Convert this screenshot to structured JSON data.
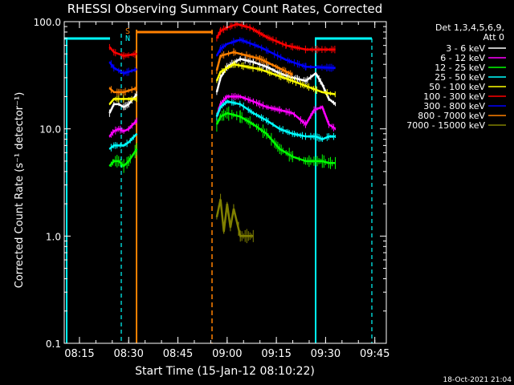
{
  "chart_data": {
    "type": "line",
    "title": "RHESSI Observing Summary Count Rates, Corrected",
    "xlabel": "Start Time (15-Jan-12 08:10:22)",
    "ylabel": "Corrected Count Rate (s⁻¹ detector⁻¹)",
    "y_scale": "log",
    "ylim": [
      0.1,
      100.0
    ],
    "xlim": [
      "08:10:22",
      "09:48:30"
    ],
    "x_ticks": [
      "08:15",
      "08:30",
      "08:45",
      "09:00",
      "09:15",
      "09:30",
      "09:45"
    ],
    "y_ticks": [
      "0.1",
      "1.0",
      "10.0",
      "100.0"
    ],
    "legend_header": [
      "Det 1,3,4,5,6,9,",
      "Att 0"
    ],
    "legend_position": "right",
    "flags": [
      "S",
      "N"
    ],
    "footer_date": "18-Oct-2021 21:04",
    "series": [
      {
        "name": "3 - 6 keV",
        "color": "#ffffff",
        "x": [
          "08:24:10",
          "08:25:30",
          "08:27:00",
          "08:28:30",
          "08:30:00",
          "08:32:30",
          "08:56:50",
          "08:58:00",
          "09:00:00",
          "09:04:00",
          "09:08:00",
          "09:12:00",
          "09:16:00",
          "09:20:00",
          "09:24:00",
          "09:27:00",
          "09:29:00",
          "09:31:00",
          "09:33:00"
        ],
        "y": [
          14,
          17,
          17,
          16,
          17,
          21,
          22,
          30,
          38,
          45,
          42,
          38,
          33,
          30,
          28,
          33,
          26,
          19,
          17
        ]
      },
      {
        "name": "6 - 12 keV",
        "color": "#ff00ff",
        "x": [
          "08:24:10",
          "08:25:30",
          "08:27:00",
          "08:28:30",
          "08:30:00",
          "08:32:30",
          "08:56:50",
          "08:58:00",
          "09:00:00",
          "09:04:00",
          "09:08:00",
          "09:12:00",
          "09:16:00",
          "09:20:00",
          "09:24:00",
          "09:26:30",
          "09:29:00",
          "09:31:00",
          "09:33:00"
        ],
        "y": [
          8.5,
          9.5,
          10,
          9.5,
          10,
          12,
          13,
          17,
          20,
          20,
          18,
          16,
          15,
          14,
          11,
          15,
          16,
          11,
          10
        ]
      },
      {
        "name": "12 - 25 keV",
        "color": "#00ff00",
        "x": [
          "08:24:10",
          "08:25:30",
          "08:27:00",
          "08:28:30",
          "08:30:00",
          "08:32:30",
          "08:56:50",
          "08:58:00",
          "09:00:00",
          "09:04:00",
          "09:08:00",
          "09:12:00",
          "09:16:00",
          "09:20:00",
          "09:24:00",
          "09:27:00",
          "09:29:00",
          "09:31:00",
          "09:33:00"
        ],
        "y": [
          4.5,
          5,
          5,
          4.5,
          5,
          6.5,
          11,
          13,
          14,
          13,
          11,
          9,
          6.5,
          5.5,
          5,
          5,
          5,
          4.8,
          4.8
        ]
      },
      {
        "name": "25 - 50 keV",
        "color": "#00ffff",
        "x": [
          "08:24:10",
          "08:25:30",
          "08:27:00",
          "08:28:30",
          "08:30:00",
          "08:32:30",
          "08:56:50",
          "08:58:00",
          "09:00:00",
          "09:04:00",
          "09:08:00",
          "09:12:00",
          "09:16:00",
          "09:20:00",
          "09:24:00",
          "09:27:00",
          "09:29:00",
          "09:31:00",
          "09:33:00"
        ],
        "y": [
          6.5,
          7,
          7,
          7,
          7.5,
          9,
          13,
          16,
          18,
          17,
          14,
          12,
          10,
          9,
          8.5,
          8.5,
          8,
          8.5,
          8.5
        ]
      },
      {
        "name": "50 - 100 keV",
        "color": "#ffff00",
        "x": [
          "08:24:10",
          "08:25:30",
          "08:28:30",
          "08:32:30",
          "08:56:50",
          "08:58:00",
          "09:02:00",
          "09:10:00",
          "09:20:00",
          "09:29:00",
          "09:33:00"
        ],
        "y": [
          17,
          19,
          19,
          19,
          28,
          34,
          40,
          36,
          28,
          22,
          21
        ]
      },
      {
        "name": "100 - 300 keV",
        "color": "#ff0000",
        "x": [
          "08:24:10",
          "08:25:30",
          "08:28:30",
          "08:32:30",
          "08:56:50",
          "08:58:00",
          "09:00:00",
          "09:03:00",
          "09:07:00",
          "09:12:00",
          "09:18:00",
          "09:24:00",
          "09:33:00"
        ],
        "y": [
          58,
          52,
          48,
          50,
          70,
          82,
          88,
          95,
          88,
          72,
          60,
          55,
          55
        ]
      },
      {
        "name": "300 - 800 keV",
        "color": "#0000ff",
        "x": [
          "08:24:10",
          "08:25:30",
          "08:28:30",
          "08:32:30",
          "08:56:50",
          "08:58:00",
          "09:00:00",
          "09:04:00",
          "09:10:00",
          "09:18:00",
          "09:24:00",
          "09:33:00"
        ],
        "y": [
          42,
          37,
          33,
          36,
          48,
          56,
          62,
          68,
          58,
          44,
          38,
          37
        ]
      },
      {
        "name": "800 - 7000 keV",
        "color": "#ff8000",
        "x": [
          "08:24:10",
          "08:25:30",
          "08:28:30",
          "08:32:30",
          "08:56:50",
          "08:58:00",
          "09:02:00",
          "09:10:00",
          "09:20:00",
          "09:33:00"
        ],
        "y": [
          24,
          22,
          22,
          24,
          35,
          48,
          52,
          45,
          32,
          24
        ]
      },
      {
        "name": "7000 - 15000 keV",
        "color": "#808000",
        "x": [
          "08:56:50",
          "08:58:00",
          "08:59:00",
          "09:00:00",
          "09:01:00",
          "09:02:00",
          "09:04:00",
          "09:06:00",
          "09:08:00"
        ],
        "y": [
          1.5,
          2.2,
          1.1,
          2.0,
          1.2,
          1.8,
          1.0,
          1.0,
          1.0
        ]
      }
    ]
  }
}
